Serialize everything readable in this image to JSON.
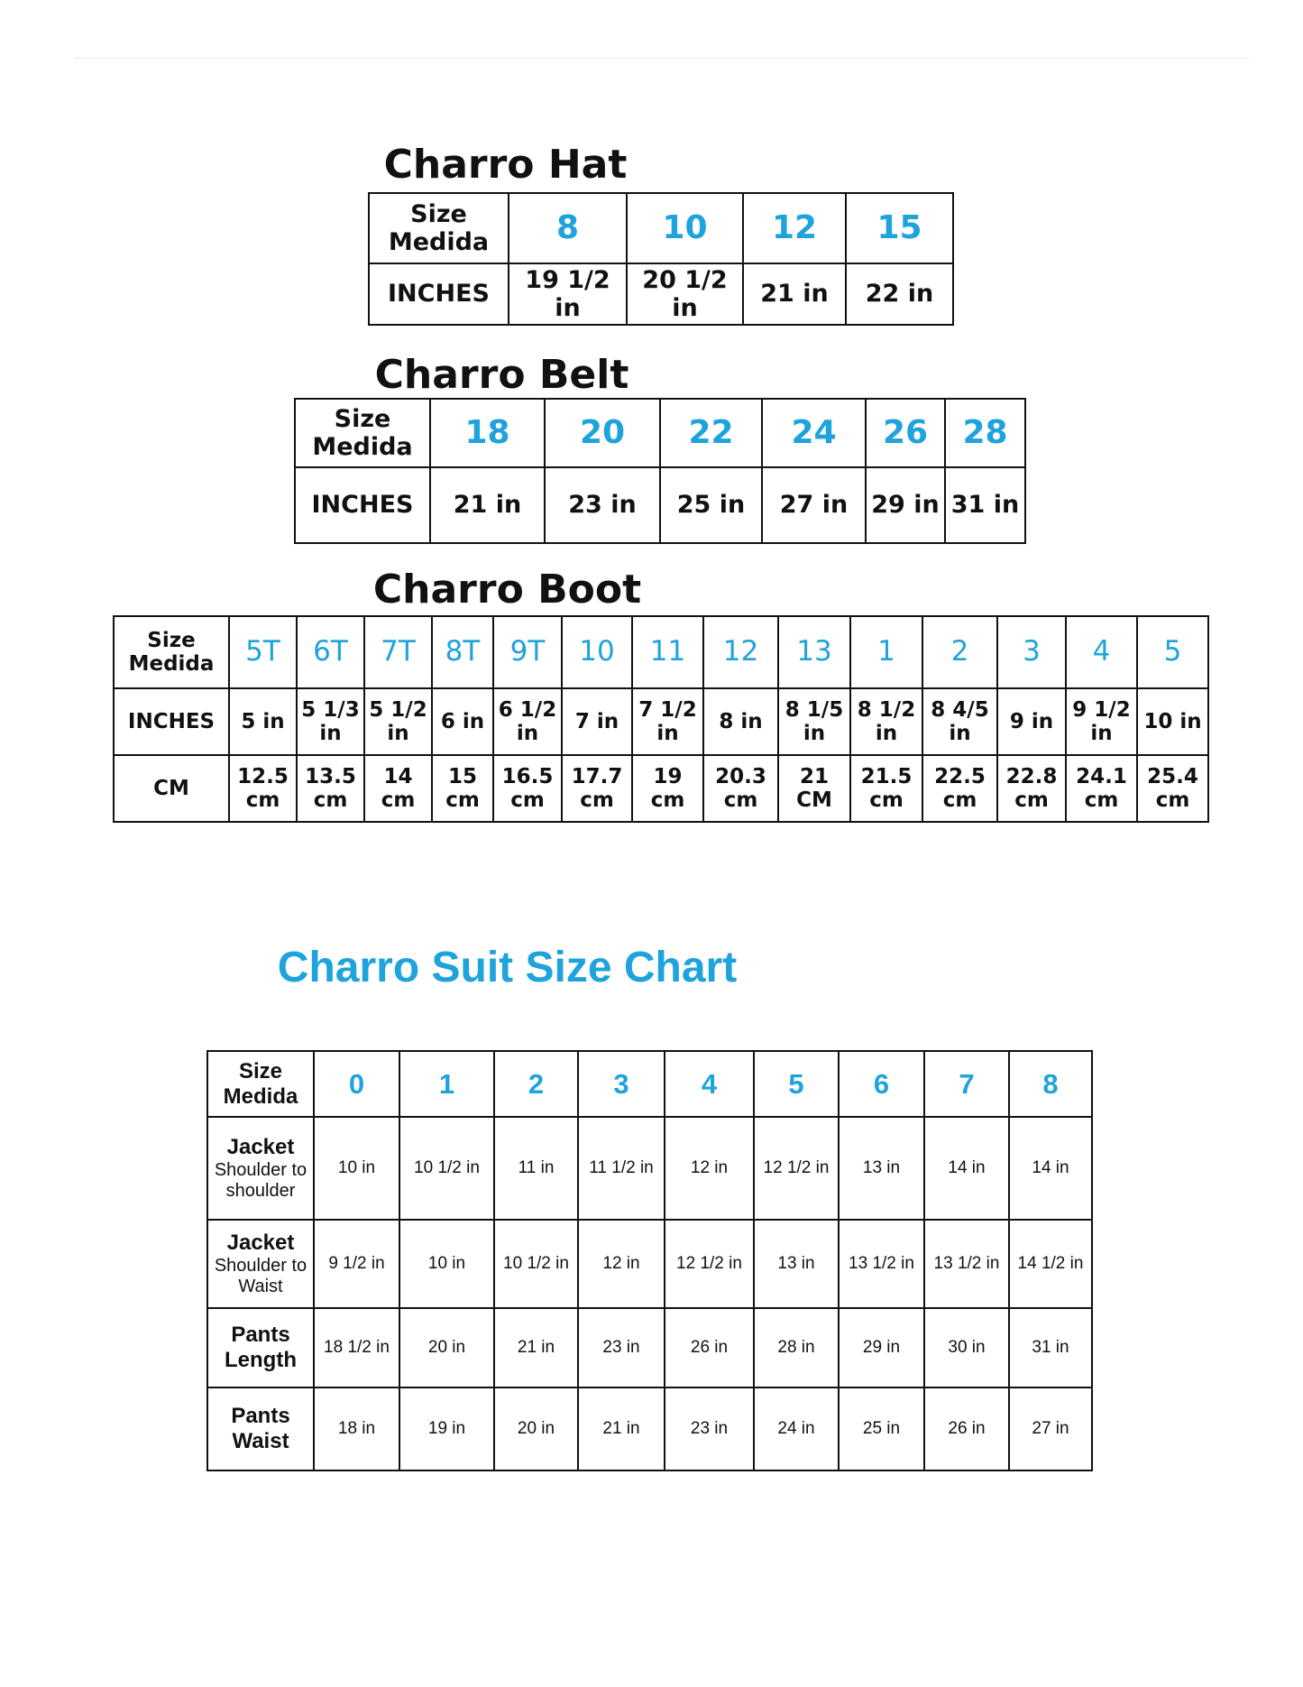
{
  "hat": {
    "title": "Charro Hat",
    "header_label": "Size Medida",
    "sizes": [
      "8",
      "10",
      "12",
      "15"
    ],
    "rows": [
      {
        "label": "INCHES",
        "values": [
          "19 1/2 in",
          "20 1/2 in",
          "21 in",
          "22 in"
        ]
      }
    ]
  },
  "belt": {
    "title": "Charro Belt",
    "header_label": "Size Medida",
    "sizes": [
      "18",
      "20",
      "22",
      "24",
      "26",
      "28"
    ],
    "rows": [
      {
        "label": "INCHES",
        "values": [
          "21 in",
          "23 in",
          "25 in",
          "27 in",
          "29 in",
          "31 in"
        ]
      }
    ]
  },
  "boot": {
    "title": "Charro Boot",
    "header_label": "Size Medida",
    "sizes": [
      "5T",
      "6T",
      "7T",
      "8T",
      "9T",
      "10",
      "11",
      "12",
      "13",
      "1",
      "2",
      "3",
      "4",
      "5"
    ],
    "rows": [
      {
        "label": "INCHES",
        "values": [
          "5 in",
          "5 1/3 in",
          "5 1/2 in",
          "6 in",
          "6 1/2 in",
          "7 in",
          "7 1/2 in",
          "8 in",
          "8 1/5 in",
          "8 1/2 in",
          "8 4/5 in",
          "9 in",
          "9 1/2 in",
          "10 in"
        ]
      },
      {
        "label": "CM",
        "values": [
          "12.5 cm",
          "13.5 cm",
          "14 cm",
          "15 cm",
          "16.5 cm",
          "17.7 cm",
          "19 cm",
          "20.3 cm",
          "21 CM",
          "21.5 cm",
          "22.5 cm",
          "22.8 cm",
          "24.1 cm",
          "25.4 cm"
        ]
      }
    ]
  },
  "suit": {
    "title": "Charro Suit Size Chart",
    "header_label": "Size Medida",
    "sizes": [
      "0",
      "1",
      "2",
      "3",
      "4",
      "5",
      "6",
      "7",
      "8"
    ],
    "rows": [
      {
        "label": "Jacket",
        "sublabel": "Shoulder to shoulder",
        "values": [
          "10 in",
          "10 1/2 in",
          "11 in",
          "11 1/2 in",
          "12 in",
          "12 1/2 in",
          "13 in",
          "14 in",
          "14 in"
        ]
      },
      {
        "label": "Jacket",
        "sublabel": "Shoulder to Waist",
        "values": [
          "9 1/2 in",
          "10 in",
          "10 1/2 in",
          "12 in",
          "12 1/2 in",
          "13  in",
          "13 1/2 in",
          "13 1/2 in",
          "14 1/2 in"
        ]
      },
      {
        "label": "Pants Length",
        "values": [
          "18 1/2 in",
          "20 in",
          "21 in",
          "23 in",
          "26 in",
          "28 in",
          "29 in",
          "30  in",
          "31 in"
        ]
      },
      {
        "label": "Pants Waist",
        "values": [
          "18 in",
          "19 in",
          "20 in",
          "21 in",
          "23 in",
          "24 in",
          "25 in",
          "26 in",
          "27 in"
        ]
      }
    ]
  },
  "colors": {
    "size_accent": "#1fa3dc",
    "border": "#111111"
  }
}
